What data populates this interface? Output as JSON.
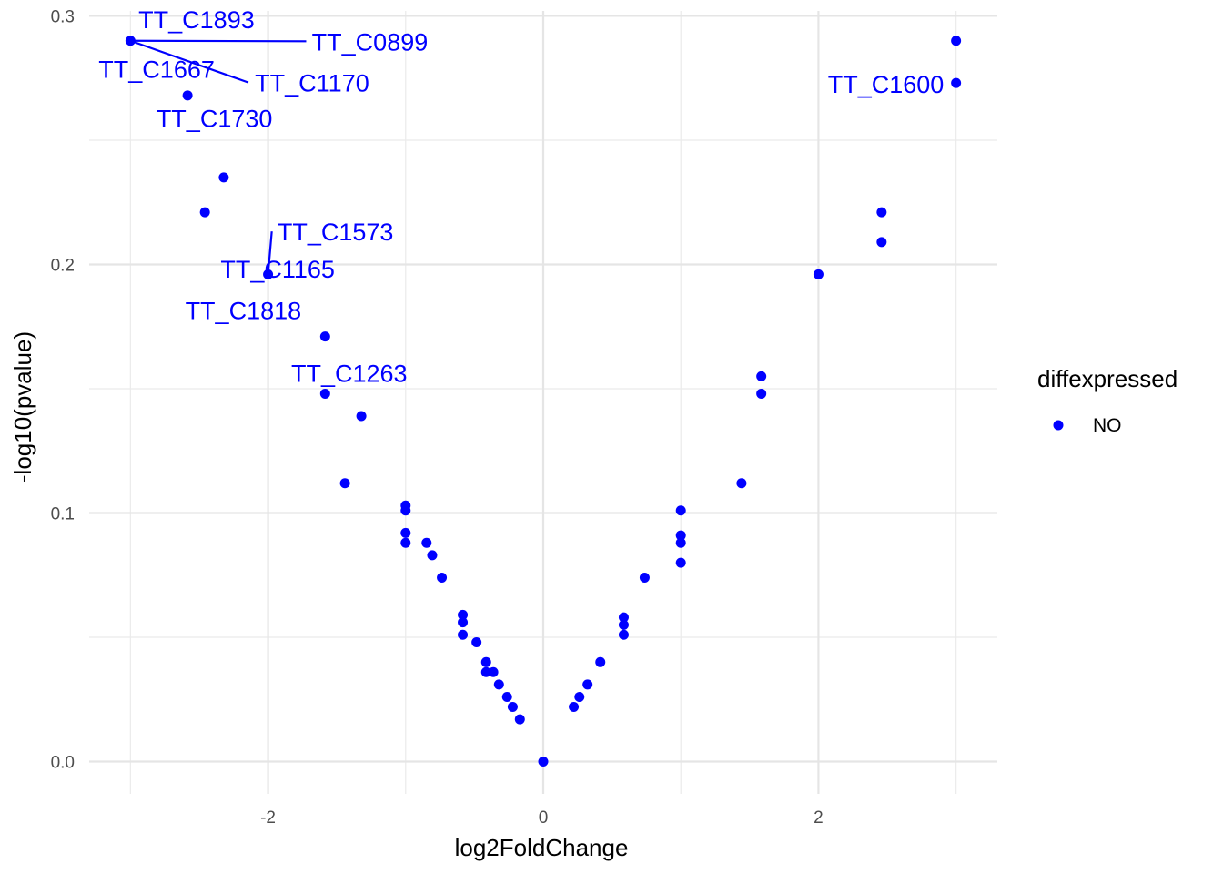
{
  "chart_data": {
    "type": "scatter",
    "title": "",
    "xlabel": "log2FoldChange",
    "ylabel": "-log10(pvalue)",
    "xlim": [
      -3.3,
      3.3
    ],
    "ylim": [
      -0.013,
      0.302
    ],
    "x_ticks": [
      -2,
      0,
      2
    ],
    "x_tick_labels": [
      "-2",
      "0",
      "2"
    ],
    "y_ticks": [
      0.0,
      0.1,
      0.2,
      0.3
    ],
    "y_tick_labels": [
      "0.0",
      "0.1",
      "0.2",
      "0.3"
    ],
    "grid": true,
    "legend": {
      "title": "diffexpressed",
      "position": "right",
      "entries": [
        {
          "label": "NO",
          "color": "#0000ff"
        }
      ]
    },
    "point_color": "#0000ff",
    "series": [
      {
        "name": "NO",
        "points": [
          {
            "x": -3.0,
            "y": 0.29
          },
          {
            "x": -2.585,
            "y": 0.268
          },
          {
            "x": -2.322,
            "y": 0.235
          },
          {
            "x": -2.459,
            "y": 0.221
          },
          {
            "x": -2.0,
            "y": 0.196
          },
          {
            "x": -1.585,
            "y": 0.171
          },
          {
            "x": -1.585,
            "y": 0.148
          },
          {
            "x": -1.322,
            "y": 0.139
          },
          {
            "x": -1.441,
            "y": 0.112
          },
          {
            "x": -1.0,
            "y": 0.103
          },
          {
            "x": -1.0,
            "y": 0.101
          },
          {
            "x": -1.0,
            "y": 0.092
          },
          {
            "x": -1.0,
            "y": 0.088
          },
          {
            "x": -0.848,
            "y": 0.088
          },
          {
            "x": -0.807,
            "y": 0.083
          },
          {
            "x": -0.737,
            "y": 0.074
          },
          {
            "x": -0.585,
            "y": 0.059
          },
          {
            "x": -0.585,
            "y": 0.056
          },
          {
            "x": -0.585,
            "y": 0.051
          },
          {
            "x": -0.485,
            "y": 0.048
          },
          {
            "x": -0.415,
            "y": 0.04
          },
          {
            "x": -0.415,
            "y": 0.036
          },
          {
            "x": -0.363,
            "y": 0.036
          },
          {
            "x": -0.322,
            "y": 0.031
          },
          {
            "x": -0.263,
            "y": 0.026
          },
          {
            "x": -0.222,
            "y": 0.022
          },
          {
            "x": -0.17,
            "y": 0.017
          },
          {
            "x": 0.0,
            "y": 0.0
          },
          {
            "x": 0.222,
            "y": 0.022
          },
          {
            "x": 0.263,
            "y": 0.026
          },
          {
            "x": 0.322,
            "y": 0.031
          },
          {
            "x": 0.415,
            "y": 0.04
          },
          {
            "x": 0.585,
            "y": 0.058
          },
          {
            "x": 0.585,
            "y": 0.055
          },
          {
            "x": 0.585,
            "y": 0.051
          },
          {
            "x": 0.737,
            "y": 0.074
          },
          {
            "x": 1.0,
            "y": 0.101
          },
          {
            "x": 1.0,
            "y": 0.091
          },
          {
            "x": 1.0,
            "y": 0.088
          },
          {
            "x": 1.0,
            "y": 0.08
          },
          {
            "x": 1.441,
            "y": 0.112
          },
          {
            "x": 1.585,
            "y": 0.155
          },
          {
            "x": 1.585,
            "y": 0.148
          },
          {
            "x": 2.0,
            "y": 0.196
          },
          {
            "x": 2.459,
            "y": 0.221
          },
          {
            "x": 2.459,
            "y": 0.209
          },
          {
            "x": 3.0,
            "y": 0.29
          },
          {
            "x": 3.0,
            "y": 0.273
          }
        ]
      }
    ],
    "annotations": [
      {
        "text": "TT_C1893",
        "x": -3.0,
        "y": 0.29,
        "label_x": -2.52,
        "label_y": 0.2987,
        "leader": false
      },
      {
        "text": "TT_C0899",
        "x": -3.0,
        "y": 0.29,
        "label_x": -1.26,
        "label_y": 0.2898,
        "leader": true
      },
      {
        "text": "TT_C1667",
        "x": -3.0,
        "y": 0.29,
        "label_x": -2.81,
        "label_y": 0.2787,
        "leader": false
      },
      {
        "text": "TT_C1170",
        "x": -3.0,
        "y": 0.29,
        "label_x": -1.68,
        "label_y": 0.2732,
        "leader": true
      },
      {
        "text": "TT_C1730",
        "x": -2.585,
        "y": 0.268,
        "label_x": -2.39,
        "label_y": 0.259,
        "leader": false
      },
      {
        "text": "TT_C1600",
        "x": 3.0,
        "y": 0.273,
        "label_x": 2.49,
        "label_y": 0.2727,
        "leader": false
      },
      {
        "text": "TT_C1573",
        "x": -2.0,
        "y": 0.196,
        "label_x": -1.51,
        "label_y": 0.2133,
        "leader": true
      },
      {
        "text": "TT_C1165",
        "x": -2.0,
        "y": 0.196,
        "label_x": -1.93,
        "label_y": 0.1984,
        "leader": false
      },
      {
        "text": "TT_C1818",
        "x": -2.0,
        "y": 0.196,
        "label_x": -2.18,
        "label_y": 0.1816,
        "leader": false
      },
      {
        "text": "TT_C1263",
        "x": -1.585,
        "y": 0.171,
        "label_x": -1.41,
        "label_y": 0.1564,
        "leader": false
      }
    ]
  }
}
